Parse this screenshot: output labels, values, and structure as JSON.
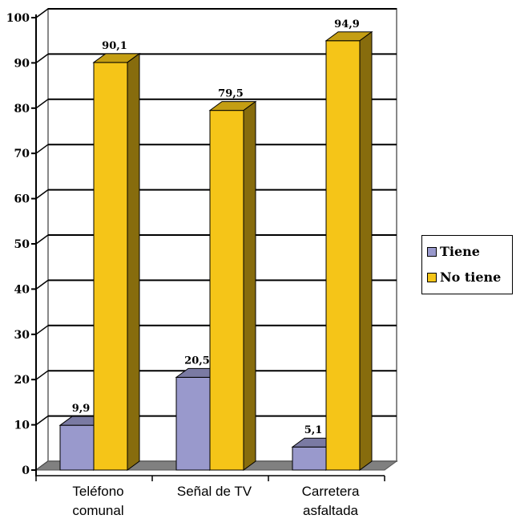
{
  "chart_data": {
    "type": "bar",
    "title": "",
    "xlabel": "",
    "ylabel": "",
    "categories": [
      [
        "Teléfono",
        "comunal"
      ],
      [
        "Señal de TV"
      ],
      [
        "Carretera",
        "asfaltada"
      ]
    ],
    "series": [
      {
        "name": "Tiene",
        "values": [
          9.9,
          20.5,
          5.1
        ],
        "labels": [
          "9,9",
          "20,5",
          "5,1"
        ],
        "color": "#9999cc"
      },
      {
        "name": "No tiene",
        "values": [
          90.1,
          79.5,
          94.9
        ],
        "labels": [
          "90,1",
          "79,5",
          "94,9"
        ],
        "color": "#f5c518"
      }
    ],
    "ylim": [
      0,
      100
    ],
    "yticks": [
      "0",
      "10",
      "20",
      "30",
      "40",
      "50",
      "60",
      "70",
      "80",
      "90",
      "100"
    ],
    "grid": true,
    "legend_position": "right",
    "style": "3d-bar"
  }
}
